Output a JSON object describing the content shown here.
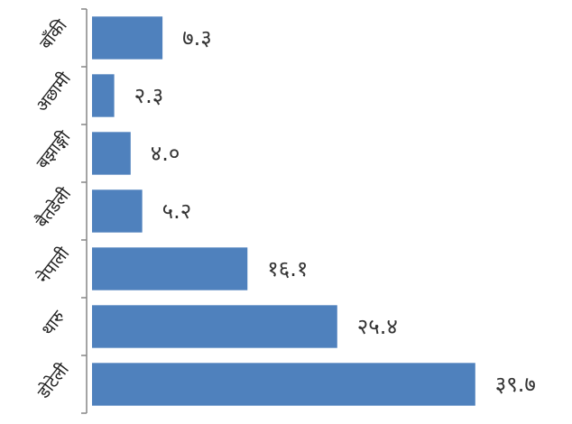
{
  "chart_data": {
    "type": "bar",
    "orientation": "horizontal",
    "title": "",
    "xlabel": "",
    "ylabel": "",
    "categories": [
      "बाँकी",
      "अछामी",
      "बझाङ्गी",
      "बैतडेली",
      "नेपाली",
      "थारु",
      "डोटेली"
    ],
    "values": [
      7.3,
      2.3,
      4.0,
      5.2,
      16.1,
      25.4,
      39.7
    ],
    "value_labels": [
      "७.३",
      "२.३",
      "४.०",
      "५.२",
      "१६.१",
      "२५.४",
      "३९.७"
    ],
    "xlim": [
      0,
      40
    ],
    "grid": false,
    "legend": "none",
    "bar_color": "#4F81BD",
    "axis_color": "#868686"
  }
}
